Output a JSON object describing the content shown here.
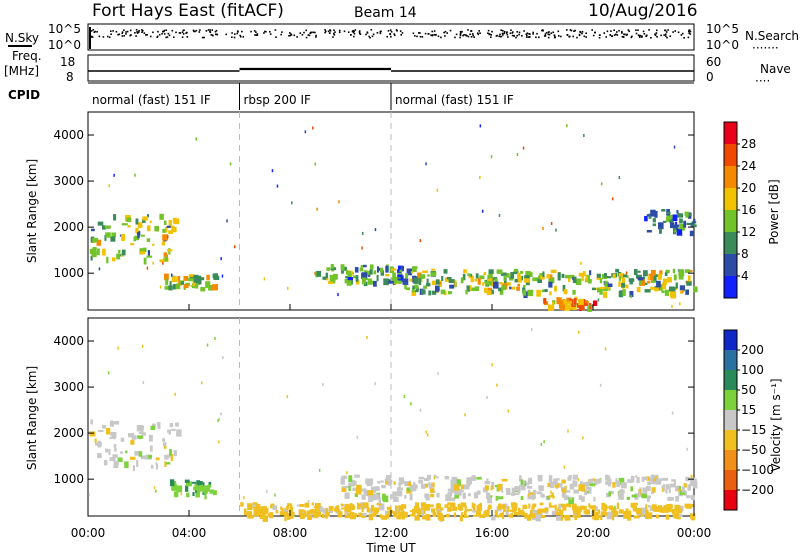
{
  "header": {
    "station": "Fort Hays East (fitACF)",
    "beam": "Beam 14",
    "date": "10/Aug/2016"
  },
  "top_labels": {
    "nsky": "N.Sky",
    "nsky_ticks": [
      "10^5",
      "10^0"
    ],
    "nsearch": "N.Search",
    "nsearch_ticks": [
      "10^5",
      "10^0"
    ],
    "freq": "Freq.",
    "freq_unit": "[MHz]",
    "freq_ticks": [
      "18",
      "8"
    ],
    "nave": "Nave",
    "nave_ticks": [
      "60",
      "0"
    ],
    "cpid": "CPID"
  },
  "cpid_segments": [
    {
      "label": "normal (fast) 151 IF",
      "start_hour": 0,
      "end_hour": 6
    },
    {
      "label": "rbsp 200 IF",
      "start_hour": 6,
      "end_hour": 12
    },
    {
      "label": "normal (fast) 151 IF",
      "start_hour": 12,
      "end_hour": 24
    }
  ],
  "xaxis": {
    "label": "Time UT",
    "ticks": [
      "00:00",
      "04:00",
      "08:00",
      "12:00",
      "16:00",
      "20:00",
      "00:00"
    ],
    "tick_hours": [
      0,
      4,
      8,
      12,
      16,
      20,
      24
    ]
  },
  "power_colorbar": {
    "label": "Power [dB]",
    "ticks": [
      "28",
      "24",
      "20",
      "16",
      "12",
      "8",
      "4"
    ],
    "colors": [
      "#e8001a",
      "#f04a00",
      "#f58a00",
      "#f2c200",
      "#72c22a",
      "#3a8a5a",
      "#2c4ca8",
      "#1020ff"
    ]
  },
  "velocity_colorbar": {
    "label": "Velocity [m s⁻¹]",
    "ticks": [
      "200",
      "100",
      "50",
      "15",
      "−15",
      "−50",
      "−100",
      "−200"
    ],
    "colors": [
      "#1028c8",
      "#2a70a0",
      "#2a8a5a",
      "#7cd23a",
      "#c8c8c8",
      "#f0c020",
      "#f09018",
      "#e86010",
      "#e80010"
    ]
  },
  "chart_data": [
    {
      "type": "heatmap",
      "title": "Power",
      "xlabel": "Time UT",
      "ylabel": "Slant Range [km]",
      "xlim": [
        0,
        24
      ],
      "ylim": [
        200,
        4500
      ],
      "yticks": [
        1000,
        2000,
        3000,
        4000
      ],
      "value_units": "dB",
      "regions": [
        {
          "t": [
            0.0,
            3.5
          ],
          "range_km": [
            1300,
            2300
          ],
          "value": 14
        },
        {
          "t": [
            3.0,
            5.0
          ],
          "range_km": [
            700,
            1000
          ],
          "value": 16
        },
        {
          "t": [
            9.0,
            13.0
          ],
          "range_km": [
            800,
            1200
          ],
          "value": 10
        },
        {
          "t": [
            12.5,
            24.0
          ],
          "range_km": [
            600,
            1100
          ],
          "value": 14
        },
        {
          "t": [
            18.0,
            20.0
          ],
          "range_km": [
            300,
            500
          ],
          "value": 22
        },
        {
          "t": [
            22.0,
            24.0
          ],
          "range_km": [
            1900,
            2400
          ],
          "value": 8
        }
      ]
    },
    {
      "type": "heatmap",
      "title": "Velocity",
      "xlabel": "Time UT",
      "ylabel": "Slant Range [km]",
      "xlim": [
        0,
        24
      ],
      "ylim": [
        200,
        4500
      ],
      "yticks": [
        1000,
        2000,
        3000,
        4000
      ],
      "value_units": "m s⁻¹",
      "regions": [
        {
          "t": [
            0.0,
            3.5
          ],
          "range_km": [
            1300,
            2300
          ],
          "value": 0
        },
        {
          "t": [
            3.2,
            5.0
          ],
          "range_km": [
            700,
            1000
          ],
          "value": 40
        },
        {
          "t": [
            6.0,
            24.0
          ],
          "range_km": [
            200,
            500
          ],
          "value": -30
        },
        {
          "t": [
            10.0,
            24.0
          ],
          "range_km": [
            600,
            1100
          ],
          "value": 0
        }
      ]
    }
  ]
}
